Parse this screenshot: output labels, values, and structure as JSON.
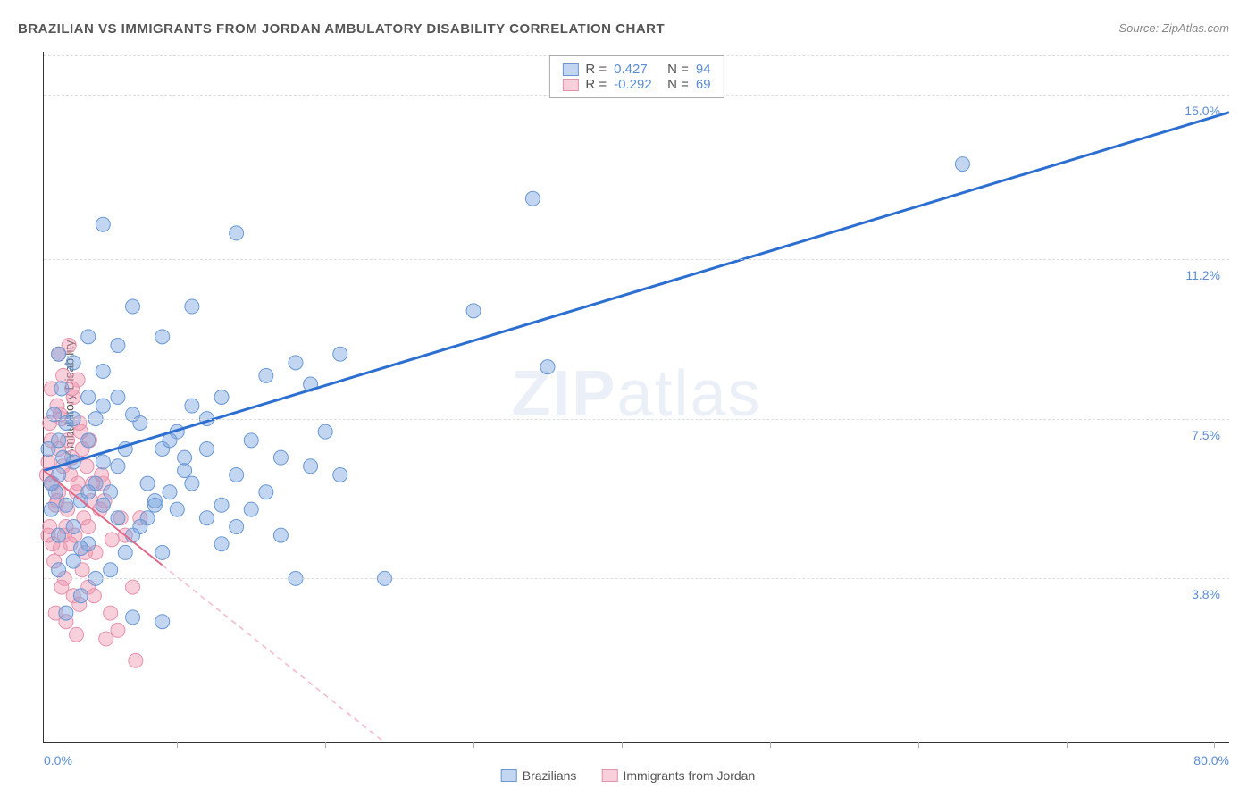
{
  "title": "BRAZILIAN VS IMMIGRANTS FROM JORDAN AMBULATORY DISABILITY CORRELATION CHART",
  "source": "Source: ZipAtlas.com",
  "watermark_a": "ZIP",
  "watermark_b": "atlas",
  "ylabel": "Ambulatory Disability",
  "chart": {
    "type": "scatter",
    "xlim": [
      0,
      80
    ],
    "ylim": [
      0,
      16
    ],
    "yticks": [
      {
        "v": 3.8,
        "label": "3.8%"
      },
      {
        "v": 7.5,
        "label": "7.5%"
      },
      {
        "v": 11.2,
        "label": "11.2%"
      },
      {
        "v": 15.0,
        "label": "15.0%"
      }
    ],
    "xtick_positions": [
      9,
      19,
      29,
      39,
      49,
      59,
      69,
      79
    ],
    "xlabel_min": "0.0%",
    "xlabel_max": "80.0%",
    "gridline_color": "#dddddd",
    "background_color": "#ffffff",
    "series": [
      {
        "name": "Brazilians",
        "fill": "rgba(120,165,225,0.45)",
        "stroke": "#6a98d4",
        "marker_radius": 8,
        "trend": {
          "x1": 0,
          "y1": 6.3,
          "x2": 80,
          "y2": 14.6,
          "color": "#2c6fd1",
          "width": 3,
          "dash": "none"
        },
        "r_label": "R =",
        "r_value": "0.427",
        "n_label": "N =",
        "n_value": "94",
        "points": [
          [
            1,
            6.2
          ],
          [
            1.5,
            7.4
          ],
          [
            0.8,
            5.8
          ],
          [
            2,
            6.5
          ],
          [
            1.2,
            8.2
          ],
          [
            3,
            7.0
          ],
          [
            2.5,
            5.6
          ],
          [
            4,
            7.8
          ],
          [
            3.5,
            6.0
          ],
          [
            5,
            8.0
          ],
          [
            1,
            4.8
          ],
          [
            2,
            5.0
          ],
          [
            3,
            4.6
          ],
          [
            4,
            5.5
          ],
          [
            5,
            6.4
          ],
          [
            6,
            7.6
          ],
          [
            7,
            5.2
          ],
          [
            8,
            6.8
          ],
          [
            9,
            7.2
          ],
          [
            10,
            6.0
          ],
          [
            1.5,
            3.0
          ],
          [
            2.5,
            3.4
          ],
          [
            3.5,
            3.8
          ],
          [
            4.5,
            4.0
          ],
          [
            5.5,
            4.4
          ],
          [
            6.5,
            5.0
          ],
          [
            7.5,
            5.5
          ],
          [
            8.5,
            5.8
          ],
          [
            9.5,
            6.3
          ],
          [
            11,
            6.8
          ],
          [
            12,
            5.5
          ],
          [
            13,
            6.2
          ],
          [
            14,
            7.0
          ],
          [
            15,
            5.8
          ],
          [
            16,
            6.6
          ],
          [
            17,
            3.8
          ],
          [
            18,
            6.4
          ],
          [
            19,
            7.2
          ],
          [
            15,
            8.5
          ],
          [
            12,
            8.0
          ],
          [
            4,
            12.0
          ],
          [
            13,
            11.8
          ],
          [
            6,
            10.1
          ],
          [
            10,
            10.1
          ],
          [
            18,
            8.3
          ],
          [
            23,
            3.8
          ],
          [
            20,
            9.0
          ],
          [
            5,
            9.2
          ],
          [
            8,
            9.4
          ],
          [
            11,
            7.5
          ],
          [
            20,
            6.2
          ],
          [
            1,
            7.0
          ],
          [
            0.5,
            6.0
          ],
          [
            1.5,
            5.5
          ],
          [
            2,
            7.5
          ],
          [
            2.5,
            4.5
          ],
          [
            3,
            8.0
          ],
          [
            3.5,
            7.5
          ],
          [
            4,
            6.5
          ],
          [
            4.5,
            5.8
          ],
          [
            5,
            5.2
          ],
          [
            5.5,
            6.8
          ],
          [
            6,
            4.8
          ],
          [
            6.5,
            7.4
          ],
          [
            7,
            6.0
          ],
          [
            7.5,
            5.6
          ],
          [
            8,
            4.4
          ],
          [
            8.5,
            7.0
          ],
          [
            9,
            5.4
          ],
          [
            9.5,
            6.6
          ],
          [
            10,
            7.8
          ],
          [
            2,
            8.8
          ],
          [
            3,
            9.4
          ],
          [
            1,
            9.0
          ],
          [
            6,
            2.9
          ],
          [
            8,
            2.8
          ],
          [
            4,
            8.6
          ],
          [
            0.7,
            7.6
          ],
          [
            0.3,
            6.8
          ],
          [
            0.5,
            5.4
          ],
          [
            33,
            12.6
          ],
          [
            29,
            10.0
          ],
          [
            62,
            13.4
          ],
          [
            34,
            8.7
          ],
          [
            14,
            5.4
          ],
          [
            16,
            4.8
          ],
          [
            12,
            4.6
          ],
          [
            11,
            5.2
          ],
          [
            13,
            5.0
          ],
          [
            17,
            8.8
          ],
          [
            1,
            4.0
          ],
          [
            2,
            4.2
          ],
          [
            3,
            5.8
          ],
          [
            1.3,
            6.6
          ]
        ]
      },
      {
        "name": "Immigrants from Jordan",
        "fill": "rgba(240,150,175,0.45)",
        "stroke": "#e592ab",
        "marker_radius": 8,
        "trend": {
          "x1": 0,
          "y1": 6.3,
          "x2": 23,
          "y2": 0,
          "color": "#f5b8c8",
          "width": 1.5,
          "dash": "6 5",
          "solid_until_x": 8,
          "solid_color": "#e06a8a",
          "solid_width": 2
        },
        "r_label": "R =",
        "r_value": "-0.292",
        "n_label": "N =",
        "n_value": "69",
        "points": [
          [
            0.3,
            6.5
          ],
          [
            0.5,
            7.0
          ],
          [
            0.8,
            5.5
          ],
          [
            1,
            6.8
          ],
          [
            1.2,
            7.5
          ],
          [
            1.5,
            5.0
          ],
          [
            1.8,
            6.2
          ],
          [
            2,
            8.0
          ],
          [
            2.2,
            5.8
          ],
          [
            2.5,
            7.2
          ],
          [
            0.4,
            5.0
          ],
          [
            0.6,
            6.0
          ],
          [
            0.9,
            7.8
          ],
          [
            1.1,
            4.5
          ],
          [
            1.3,
            8.5
          ],
          [
            1.6,
            5.4
          ],
          [
            1.9,
            6.6
          ],
          [
            2.1,
            4.8
          ],
          [
            2.4,
            7.4
          ],
          [
            2.7,
            5.2
          ],
          [
            0.2,
            6.2
          ],
          [
            0.7,
            4.2
          ],
          [
            1.0,
            9.0
          ],
          [
            1.4,
            3.8
          ],
          [
            1.7,
            9.2
          ],
          [
            2.0,
            3.4
          ],
          [
            2.3,
            6.0
          ],
          [
            2.6,
            4.0
          ],
          [
            2.9,
            6.4
          ],
          [
            3.2,
            5.6
          ],
          [
            0.5,
            8.2
          ],
          [
            1.2,
            3.6
          ],
          [
            1.8,
            4.6
          ],
          [
            2.4,
            3.2
          ],
          [
            3.0,
            5.0
          ],
          [
            3.5,
            4.4
          ],
          [
            4.0,
            6.0
          ],
          [
            4.5,
            3.0
          ],
          [
            5.0,
            2.6
          ],
          [
            5.5,
            4.8
          ],
          [
            0.8,
            3.0
          ],
          [
            1.5,
            2.8
          ],
          [
            2.2,
            2.5
          ],
          [
            3.0,
            3.6
          ],
          [
            3.8,
            5.4
          ],
          [
            1.0,
            5.8
          ],
          [
            1.6,
            7.0
          ],
          [
            2.3,
            8.4
          ],
          [
            3.1,
            7.0
          ],
          [
            3.9,
            6.2
          ],
          [
            6.0,
            3.6
          ],
          [
            6.5,
            5.2
          ],
          [
            4.2,
            2.4
          ],
          [
            1.4,
            4.8
          ],
          [
            0.6,
            4.6
          ],
          [
            0.9,
            5.6
          ],
          [
            1.3,
            6.4
          ],
          [
            2.8,
            4.4
          ],
          [
            3.4,
            3.4
          ],
          [
            4.6,
            4.7
          ],
          [
            0.4,
            7.4
          ],
          [
            1.1,
            7.6
          ],
          [
            1.9,
            8.2
          ],
          [
            2.6,
            6.8
          ],
          [
            3.3,
            6.0
          ],
          [
            4.1,
            5.6
          ],
          [
            5.2,
            5.2
          ],
          [
            6.2,
            1.9
          ],
          [
            0.3,
            4.8
          ]
        ]
      }
    ]
  },
  "legend_bottom": {
    "items": [
      "Brazilians",
      "Immigrants from Jordan"
    ]
  }
}
